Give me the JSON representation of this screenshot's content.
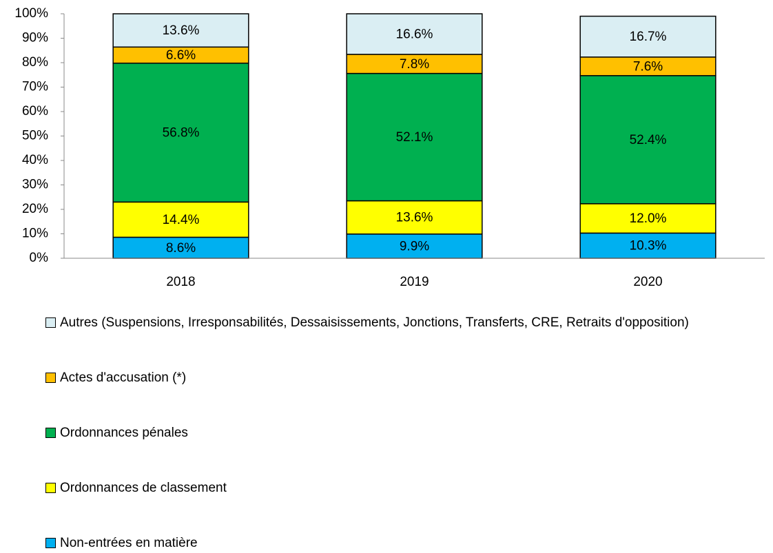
{
  "chart_data": {
    "type": "stacked_bar",
    "categories": [
      "2018",
      "2019",
      "2020"
    ],
    "series": [
      {
        "name": "Non-entrées en matière",
        "color": "#00b0f0",
        "values": [
          8.6,
          9.9,
          10.3
        ],
        "value_labels": [
          "8.6%",
          "9.9%",
          "10.3%"
        ]
      },
      {
        "name": "Ordonnances de classement",
        "color": "#ffff00",
        "values": [
          14.4,
          13.6,
          12.0
        ],
        "value_labels": [
          "14.4%",
          "13.6%",
          "12.0%"
        ]
      },
      {
        "name": "Ordonnances pénales",
        "color": "#00b050",
        "values": [
          56.8,
          52.1,
          52.4
        ],
        "value_labels": [
          "56.8%",
          "52.1%",
          "52.4%"
        ]
      },
      {
        "name": "Actes d'accusation (*)",
        "color": "#ffc000",
        "values": [
          6.6,
          7.8,
          7.6
        ],
        "value_labels": [
          "6.6%",
          "7.8%",
          "7.6%"
        ]
      },
      {
        "name": "Autres (Suspensions, Irresponsabilités, Dessaisissements, Jonctions, Transferts, CRE, Retraits d'opposition)",
        "color": "#daeef3",
        "values": [
          13.6,
          16.6,
          16.7
        ],
        "value_labels": [
          "13.6%",
          "16.6%",
          "16.7%"
        ]
      }
    ],
    "ylim": [
      0,
      100
    ],
    "yticks": [
      {
        "value": 0,
        "label": "0%"
      },
      {
        "value": 10,
        "label": "10%"
      },
      {
        "value": 20,
        "label": "20%"
      },
      {
        "value": 30,
        "label": "30%"
      },
      {
        "value": 40,
        "label": "40%"
      },
      {
        "value": 50,
        "label": "50%"
      },
      {
        "value": 60,
        "label": "60%"
      },
      {
        "value": 70,
        "label": "70%"
      },
      {
        "value": 80,
        "label": "80%"
      },
      {
        "value": 90,
        "label": "90%"
      },
      {
        "value": 100,
        "label": "100%"
      }
    ],
    "grid": false,
    "legend": "bottom"
  }
}
